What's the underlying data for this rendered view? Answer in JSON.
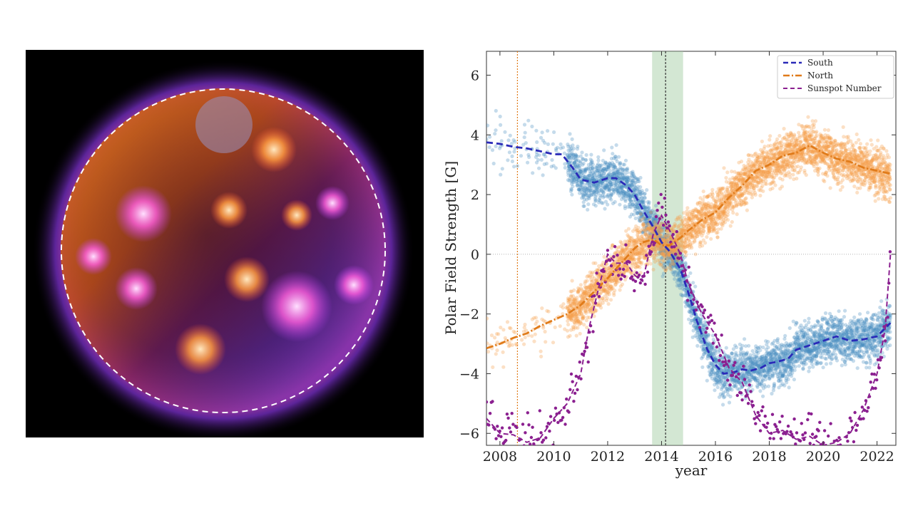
{
  "image_panel": {
    "subject": "sun-corona-composite",
    "dashed_outline_color": "#ffffff"
  },
  "chart_data": {
    "type": "scatter",
    "title": "",
    "xlabel": "year",
    "ylabel": "Polar Field Strength [G]",
    "xlim": [
      2007.5,
      2022.7
    ],
    "ylim": [
      -6.4,
      6.8
    ],
    "xticks": [
      2008,
      2010,
      2012,
      2014,
      2016,
      2018,
      2020,
      2022
    ],
    "yticks": [
      -6,
      -4,
      -2,
      0,
      2,
      4,
      6
    ],
    "grid": false,
    "legend_position": "top-right",
    "shaded_band": {
      "x": [
        2013.65,
        2014.8
      ],
      "color": "#a8d0a8"
    },
    "vlines": [
      {
        "x": 2008.65,
        "color": "#e07b1a",
        "style": "dotted"
      },
      {
        "x": 2014.15,
        "color": "#333333",
        "style": "dashed"
      }
    ],
    "hline": {
      "y": 0,
      "color": "#999999",
      "style": "dotted"
    },
    "series": [
      {
        "name": "South",
        "color": "#2a2ab8",
        "scatter_color": "#4b8fc0",
        "style": "dashed",
        "x": [
          2007.5,
          2008.0,
          2008.5,
          2009.0,
          2009.5,
          2010.0,
          2010.3,
          2010.7,
          2011.0,
          2011.5,
          2012.0,
          2012.3,
          2012.7,
          2013.0,
          2013.3,
          2013.7,
          2014.0,
          2014.3,
          2014.7,
          2015.0,
          2015.3,
          2015.7,
          2016.0,
          2016.3,
          2016.7,
          2017.0,
          2017.3,
          2017.7,
          2018.0,
          2018.3,
          2018.7,
          2019.0,
          2019.5,
          2020.0,
          2020.5,
          2021.0,
          2021.5,
          2022.0,
          2022.5
        ],
        "y": [
          3.75,
          3.7,
          3.6,
          3.55,
          3.45,
          3.35,
          3.35,
          2.9,
          2.5,
          2.4,
          2.55,
          2.55,
          2.3,
          2.0,
          1.5,
          0.9,
          0.4,
          0.1,
          -0.5,
          -1.3,
          -2.2,
          -3.2,
          -3.7,
          -4.0,
          -3.95,
          -3.85,
          -3.9,
          -3.8,
          -3.65,
          -3.6,
          -3.5,
          -3.2,
          -3.05,
          -2.9,
          -2.75,
          -2.9,
          -2.85,
          -2.75,
          -2.3
        ]
      },
      {
        "name": "North",
        "color": "#e07b1a",
        "scatter_color": "#f5a04a",
        "style": "dashdot",
        "x": [
          2007.5,
          2008.0,
          2008.5,
          2009.0,
          2009.5,
          2010.0,
          2010.5,
          2011.0,
          2011.5,
          2012.0,
          2012.5,
          2013.0,
          2013.3,
          2013.7,
          2014.0,
          2014.3,
          2014.7,
          2015.0,
          2015.5,
          2016.0,
          2016.5,
          2017.0,
          2017.5,
          2018.0,
          2018.5,
          2019.0,
          2019.5,
          2020.0,
          2020.5,
          2021.0,
          2021.5,
          2022.0,
          2022.5
        ],
        "y": [
          -3.15,
          -3.0,
          -2.8,
          -2.65,
          -2.4,
          -2.2,
          -2.0,
          -1.7,
          -1.25,
          -0.8,
          -0.3,
          0.2,
          0.4,
          0.5,
          0.3,
          0.3,
          0.55,
          0.8,
          1.15,
          1.4,
          1.9,
          2.3,
          2.8,
          3.0,
          3.3,
          3.4,
          3.65,
          3.4,
          3.2,
          3.1,
          2.9,
          2.8,
          2.7
        ]
      },
      {
        "name": "Sunspot Number",
        "color": "#8b2090",
        "scatter_color": "#8b2090",
        "style": "dashed",
        "x": [
          2007.5,
          2008.0,
          2008.5,
          2009.0,
          2009.5,
          2010.0,
          2010.5,
          2011.0,
          2011.3,
          2011.7,
          2012.0,
          2012.3,
          2012.7,
          2013.0,
          2013.3,
          2013.7,
          2014.0,
          2014.3,
          2014.7,
          2015.0,
          2015.5,
          2016.0,
          2016.5,
          2017.0,
          2017.5,
          2018.0,
          2018.5,
          2019.0,
          2019.5,
          2020.0,
          2020.5,
          2021.0,
          2021.5,
          2022.0,
          2022.3,
          2022.5
        ],
        "y": [
          -5.5,
          -6.0,
          -6.05,
          -6.3,
          -6.15,
          -5.5,
          -5.0,
          -4.0,
          -2.5,
          -1.0,
          0.0,
          -0.3,
          -0.3,
          -0.7,
          -0.9,
          0.7,
          1.3,
          0.8,
          0.0,
          -1.0,
          -2.0,
          -2.7,
          -3.8,
          -4.3,
          -5.4,
          -6.0,
          -5.9,
          -6.2,
          -6.1,
          -6.4,
          -6.3,
          -6.0,
          -5.2,
          -4.0,
          -2.5,
          0.0
        ]
      }
    ]
  }
}
